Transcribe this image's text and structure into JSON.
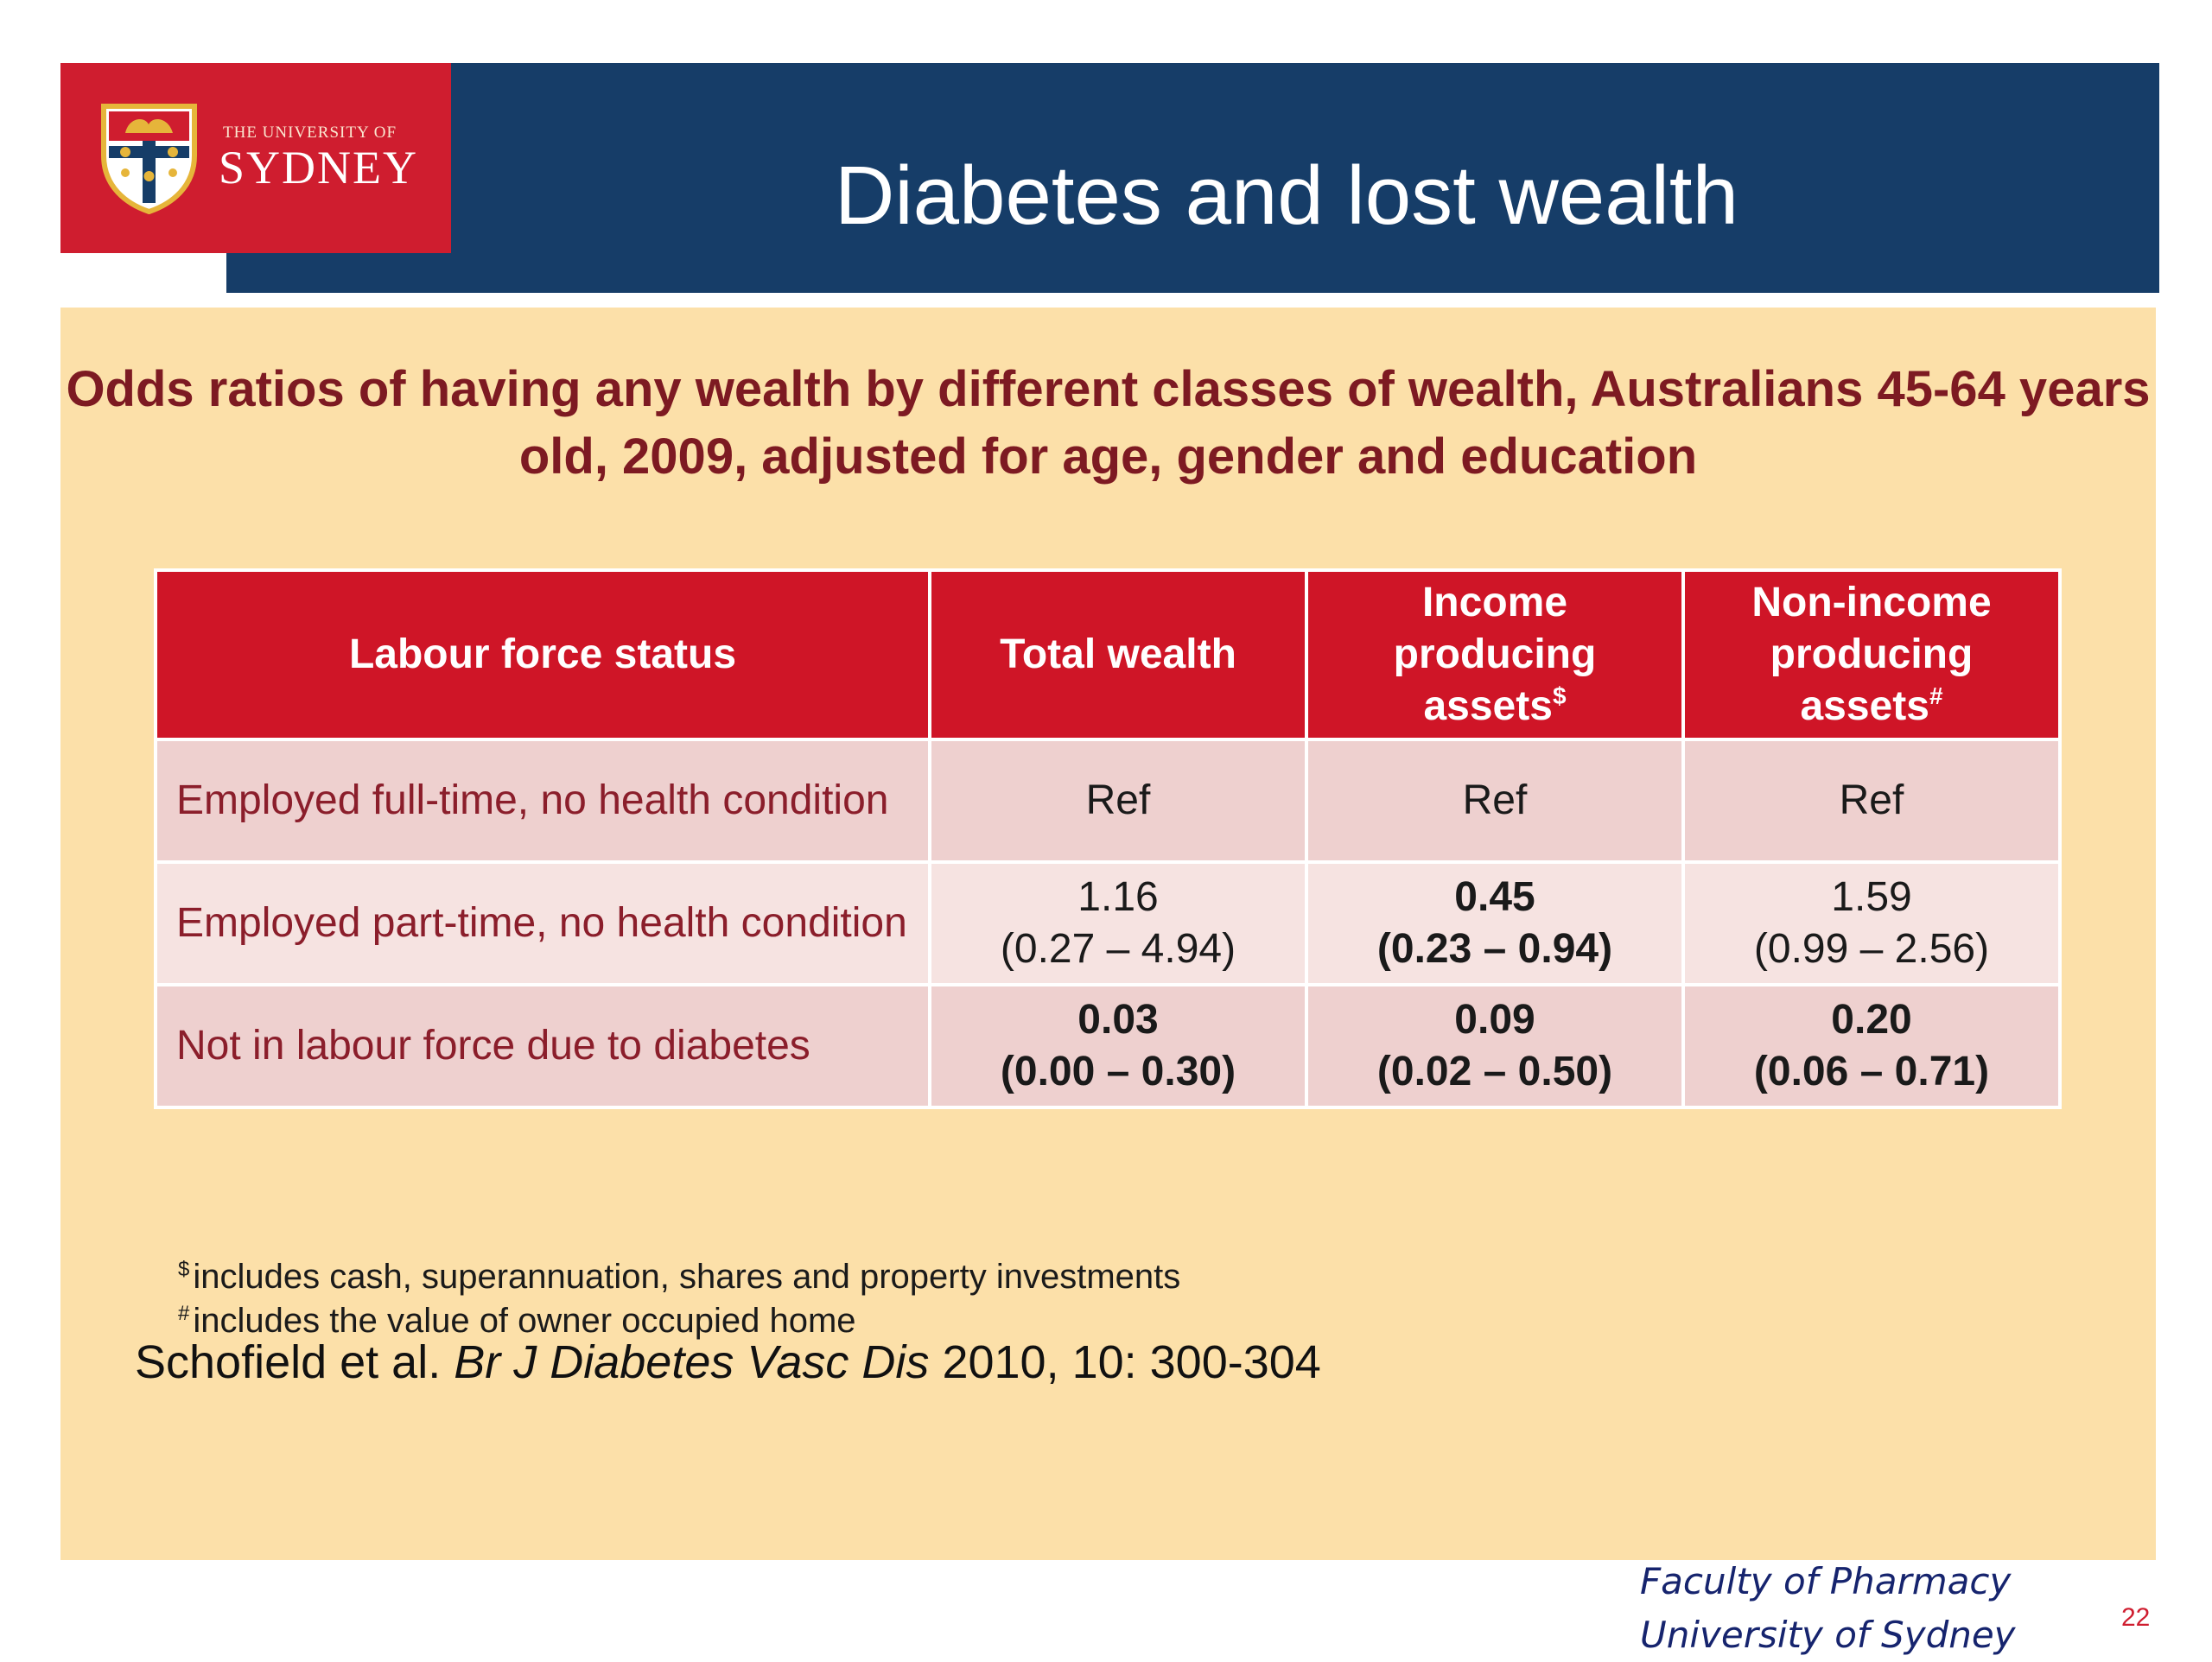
{
  "logo": {
    "line1": "THE UNIVERSITY OF",
    "line2": "SYDNEY",
    "colors": {
      "background": "#cf1d2f",
      "crest_gold": "#e6b53a",
      "crest_blue": "#163d68"
    }
  },
  "header": {
    "title": "Diabetes and lost wealth",
    "background_color": "#163d68"
  },
  "content": {
    "background_color": "#fce0a9",
    "subtitle": "Odds ratios of having any wealth by different classes of wealth, Australians 45-64 years old, 2009, adjusted for age, gender and education",
    "table": {
      "header_color": "#cf1527",
      "columns": [
        {
          "label": "Labour force status",
          "mark": ""
        },
        {
          "label": "Total wealth",
          "mark": ""
        },
        {
          "label": "Income producing assets",
          "mark": "$"
        },
        {
          "label": "Non-income producing assets",
          "mark": "#"
        }
      ],
      "rows": [
        {
          "label": "Employed full-time, no health condition",
          "cells": [
            {
              "value": "Ref",
              "ci": "",
              "bold": false
            },
            {
              "value": "Ref",
              "ci": "",
              "bold": false
            },
            {
              "value": "Ref",
              "ci": "",
              "bold": false
            }
          ]
        },
        {
          "label": "Employed part-time, no health condition",
          "cells": [
            {
              "value": "1.16",
              "ci": "(0.27 – 4.94)",
              "bold": false
            },
            {
              "value": "0.45",
              "ci": "(0.23 – 0.94)",
              "bold": true
            },
            {
              "value": "1.59",
              "ci": "(0.99 – 2.56)",
              "bold": false
            }
          ]
        },
        {
          "label": "Not in labour force due to diabetes",
          "cells": [
            {
              "value": "0.03",
              "ci": "(0.00 – 0.30)",
              "bold": true
            },
            {
              "value": "0.09",
              "ci": "(0.02 – 0.50)",
              "bold": true
            },
            {
              "value": "0.20",
              "ci": "(0.06 – 0.71)",
              "bold": true
            }
          ]
        }
      ]
    },
    "footnotes": [
      {
        "mark": "$",
        "text": "includes cash, superannuation, shares and property investments"
      },
      {
        "mark": "#",
        "text": "includes the value of owner occupied home"
      }
    ],
    "citation": {
      "authors": "Schofield et al.",
      "journal": "Br J Diabetes Vasc Dis",
      "details": "2010, 10: 300-304"
    }
  },
  "footer": {
    "faculty_line1": "Faculty of Pharmacy",
    "faculty_line2": "University of Sydney",
    "page_number": "22"
  }
}
